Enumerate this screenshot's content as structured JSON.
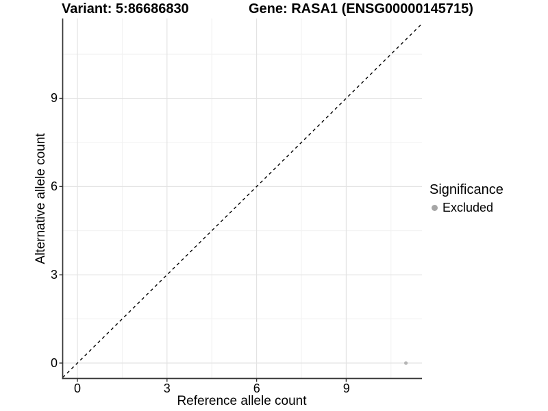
{
  "header": {
    "title_left": "Variant: 5:86686830",
    "title_right": "Gene: RASA1 (ENSG00000145715)"
  },
  "chart_data": {
    "type": "scatter",
    "title": "Variant: 5:86686830    Gene: RASA1 (ENSG00000145715)",
    "xlabel": "Reference allele count",
    "ylabel": "Alternative allele count",
    "x_ticks": [
      "0",
      "3",
      "6",
      "9"
    ],
    "y_ticks": [
      "0",
      "3",
      "6",
      "9"
    ],
    "x_tick_values": [
      0,
      3,
      6,
      9
    ],
    "y_tick_values": [
      0,
      3,
      6,
      9
    ],
    "xlim": [
      -0.55,
      11.55
    ],
    "ylim": [
      -0.55,
      11.7
    ],
    "grid": "major+minor",
    "minor_step": 1.5,
    "grid_color_major": "#e3e3e3",
    "grid_color_minor": "#f1f1f1",
    "axis_color": "#333333",
    "diagonal": {
      "slope": 1,
      "intercept": 0,
      "style": "dashed",
      "color": "#000000"
    },
    "series": [
      {
        "name": "Excluded",
        "color": "#b5b5b5",
        "points": [
          {
            "x": 11,
            "y": 0
          }
        ]
      }
    ],
    "legend": {
      "title": "Significance",
      "position": "right",
      "entries": [
        {
          "label": "Excluded",
          "color": "#a6a6a6"
        }
      ]
    }
  }
}
